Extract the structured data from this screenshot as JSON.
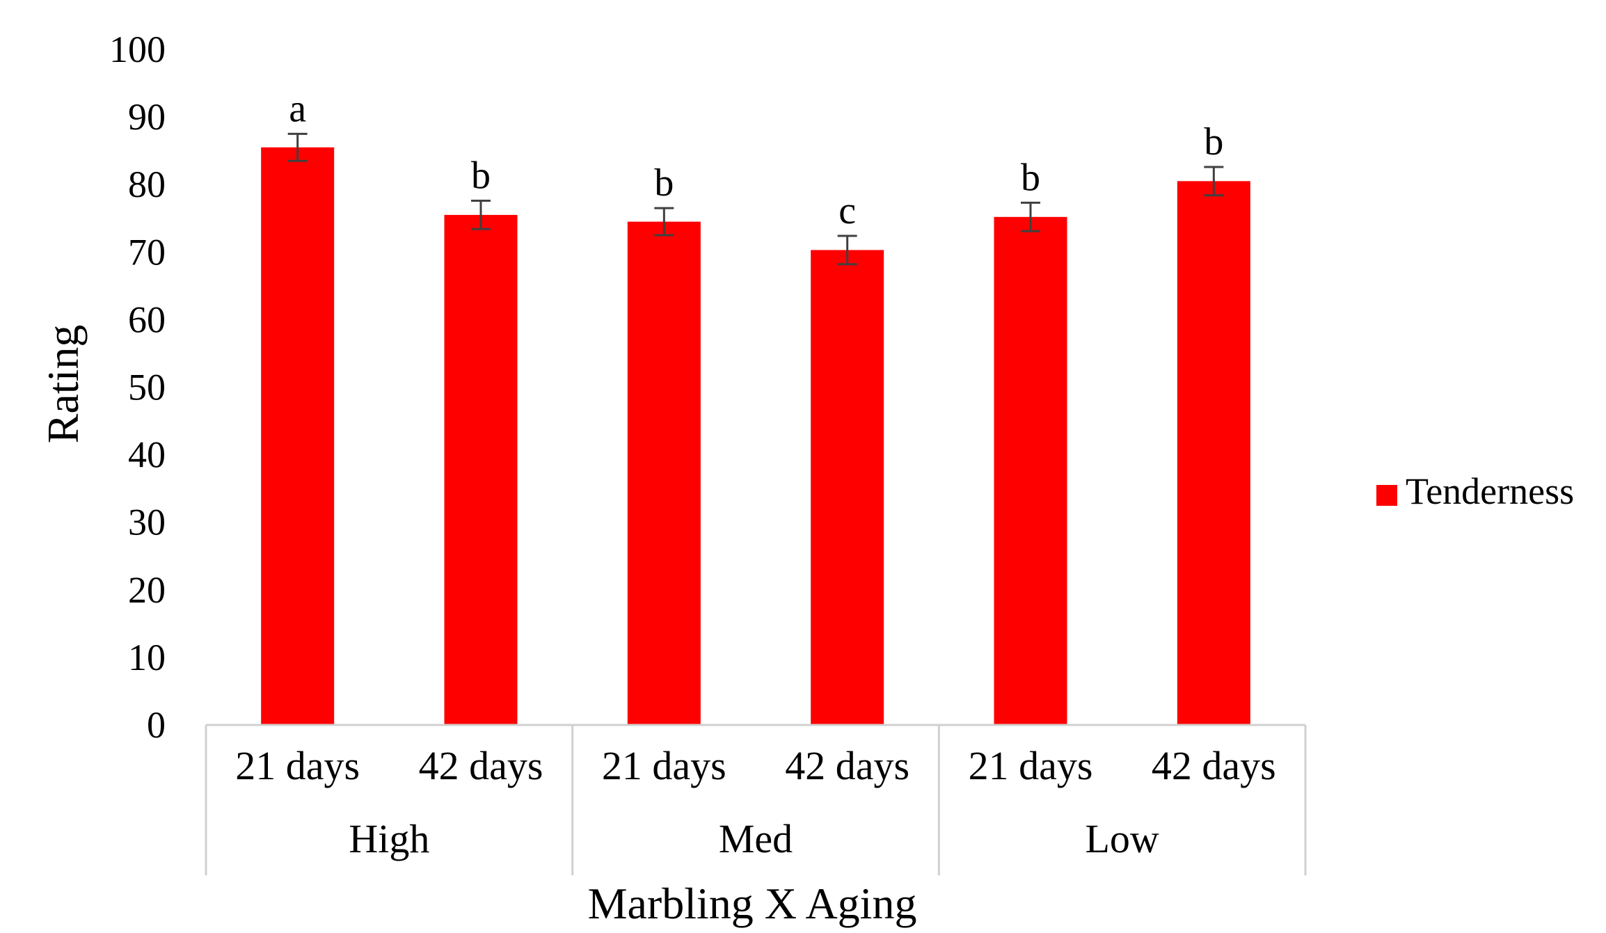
{
  "chart_data": {
    "type": "bar",
    "xlabel": "Marbling X Aging",
    "ylabel": "Rating",
    "ylim": [
      0,
      100
    ],
    "yticks": [
      0,
      10,
      20,
      30,
      40,
      50,
      60,
      70,
      80,
      90,
      100
    ],
    "groups": [
      {
        "label": "High",
        "categories": [
          "21 days",
          "42 days"
        ]
      },
      {
        "label": "Med",
        "categories": [
          "21 days",
          "42 days"
        ]
      },
      {
        "label": "Low",
        "categories": [
          "21 days",
          "42 days"
        ]
      }
    ],
    "categories": [
      "21 days",
      "42 days",
      "21 days",
      "42 days",
      "21 days",
      "42 days"
    ],
    "series": [
      {
        "name": "Tenderness",
        "color": "#ff0000",
        "values": [
          85.5,
          75.5,
          74.5,
          70.3,
          75.2,
          80.5
        ],
        "errors": [
          2.0,
          2.1,
          2.0,
          2.1,
          2.1,
          2.1
        ],
        "significance": [
          "a",
          "b",
          "b",
          "c",
          "b",
          "b"
        ]
      }
    ],
    "legend_position": "right",
    "grid": false
  }
}
